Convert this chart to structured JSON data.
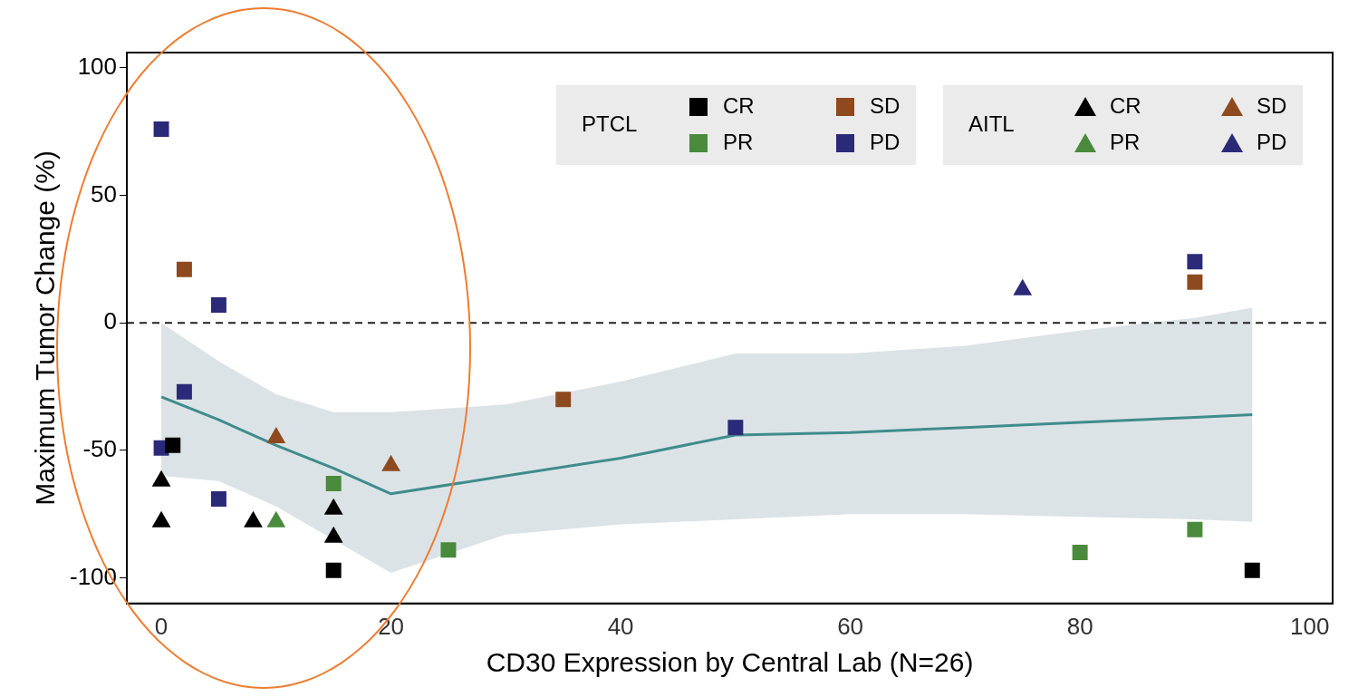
{
  "chart_data": {
    "type": "scatter",
    "xlabel": "CD30 Expression by Central Lab (N=26)",
    "ylabel": "Maximum Tumor Change (%)",
    "xlim": [
      -3,
      102
    ],
    "ylim": [
      -110,
      106
    ],
    "xticks": [
      0,
      20,
      40,
      60,
      80,
      100
    ],
    "yticks": [
      -100,
      -50,
      0,
      50,
      100
    ],
    "grid": false,
    "legend": "top right",
    "legend_title": [
      "PTCL",
      "AITL"
    ],
    "ref_lines": [
      {
        "axis": "y",
        "value": 0,
        "color": "#222222",
        "line_style": "dashed"
      }
    ],
    "series": [
      {
        "name": "CR",
        "type": "scatter",
        "marker": "square",
        "color": "#000000",
        "x": [
          1,
          15,
          95
        ],
        "values": [
          -48,
          -97,
          -97
        ]
      },
      {
        "name": "PR",
        "type": "scatter",
        "marker": "square",
        "color": "#4a8a3c",
        "x": [
          15,
          25,
          80,
          90
        ],
        "values": [
          -63,
          -89,
          -90,
          -81
        ]
      },
      {
        "name": "SD",
        "type": "scatter",
        "marker": "square",
        "color": "#8e4a1e",
        "x": [
          2,
          35,
          90
        ],
        "values": [
          21,
          -30,
          16
        ]
      },
      {
        "name": "PD",
        "type": "scatter",
        "marker": "square",
        "color": "#2b2a78",
        "x": [
          0,
          5,
          2,
          0,
          5,
          50,
          90
        ],
        "values": [
          76,
          7,
          -27,
          -49,
          -69,
          -41,
          24
        ]
      },
      {
        "name": "CR",
        "type": "scatter",
        "marker": "triangle",
        "color": "#000000",
        "x": [
          0,
          0,
          8,
          15,
          15
        ],
        "values": [
          -62,
          -78,
          -78,
          -73,
          -84
        ]
      },
      {
        "name": "PR",
        "type": "scatter",
        "marker": "triangle",
        "color": "#4a8a3c",
        "x": [
          10
        ],
        "values": [
          -78
        ]
      },
      {
        "name": "SD",
        "type": "scatter",
        "marker": "triangle",
        "color": "#8e4a1e",
        "x": [
          10,
          20
        ],
        "values": [
          -45,
          -56
        ]
      },
      {
        "name": "PD",
        "type": "scatter",
        "marker": "triangle",
        "color": "#2b2a78",
        "x": [
          75
        ],
        "values": [
          13
        ]
      },
      {
        "type": "line",
        "marker": "none",
        "line_style": "solid",
        "color": "#3f8c8c",
        "x": [
          0,
          5,
          10,
          15,
          20,
          30,
          40,
          50,
          60,
          70,
          80,
          90,
          95
        ],
        "values": [
          -29,
          -38,
          -48,
          -57,
          -67,
          -60,
          -53,
          -44,
          -43,
          -41,
          -39,
          -37,
          -36
        ],
        "lower": [
          -60,
          -62,
          -72,
          -85,
          -98,
          -83,
          -79,
          -77,
          -75,
          -75,
          -76,
          -77,
          -78
        ],
        "upper": [
          0,
          -15,
          -28,
          -35,
          -35,
          -32,
          -23,
          -12,
          -12,
          -9,
          -3,
          2,
          6
        ]
      }
    ]
  }
}
